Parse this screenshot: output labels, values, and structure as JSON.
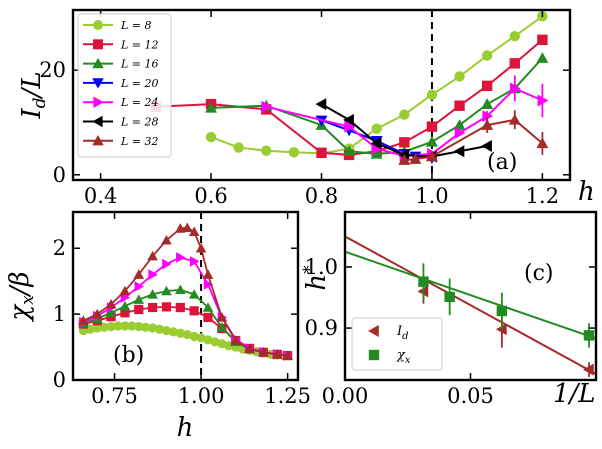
{
  "chart_data": [
    {
      "id": "a",
      "type": "line",
      "panel_label": "(a)",
      "xlabel": "h",
      "ylabel": "I_d/L",
      "xlim": [
        0.35,
        1.25
      ],
      "ylim": [
        -1.0,
        31.5
      ],
      "xticks": [
        0.4,
        0.6,
        0.8,
        1.0,
        1.2
      ],
      "xtick_labels": [
        "0.4",
        "0.6",
        "0.8",
        "1.0",
        "1.2"
      ],
      "yticks": [
        0,
        20
      ],
      "ytick_labels": [
        "0",
        "20"
      ],
      "vline": 1.0,
      "legend_position": "top-left",
      "series": [
        {
          "name": "L = 8",
          "color": "#9acd32",
          "marker": "circle",
          "x": [
            0.6,
            0.65,
            0.7,
            0.75,
            0.8,
            0.85,
            0.9,
            0.95,
            1.0,
            1.05,
            1.1,
            1.15,
            1.2
          ],
          "y": [
            7.2,
            5.2,
            4.6,
            4.3,
            4.1,
            5.0,
            8.8,
            11.5,
            15.3,
            18.8,
            22.8,
            26.5,
            30.3
          ],
          "err": [
            0,
            0,
            0,
            0,
            0,
            0,
            0,
            0,
            0,
            0,
            0,
            0,
            0
          ]
        },
        {
          "name": "L = 12",
          "color": "#dc143c",
          "marker": "square",
          "x": [
            0.5,
            0.6,
            0.7,
            0.8,
            0.85,
            0.9,
            0.95,
            1.0,
            1.05,
            1.1,
            1.15,
            1.2
          ],
          "y": [
            13.0,
            13.5,
            12.5,
            4.2,
            3.8,
            4.5,
            6.2,
            9.2,
            13.2,
            17.0,
            21.3,
            25.8
          ],
          "err": [
            0,
            0,
            0,
            0,
            0,
            0,
            0,
            0,
            0,
            0,
            0,
            0
          ]
        },
        {
          "name": "L = 16",
          "color": "#228b22",
          "marker": "triangle-up",
          "x": [
            0.6,
            0.7,
            0.8,
            0.85,
            0.9,
            0.95,
            1.0,
            1.05,
            1.1,
            1.15,
            1.2
          ],
          "y": [
            12.8,
            13.2,
            9.5,
            4.5,
            4.0,
            4.4,
            6.3,
            9.5,
            13.5,
            16.5,
            22.3
          ],
          "err": [
            0,
            0,
            0,
            0,
            0,
            0,
            0,
            0,
            0,
            0,
            0
          ]
        },
        {
          "name": "L = 20",
          "color": "#0000ff",
          "marker": "triangle-down",
          "x": [
            0.8,
            0.85,
            0.9,
            0.95,
            0.97,
            1.0
          ],
          "y": [
            10.4,
            8.5,
            6.5,
            4.0,
            3.5,
            3.2
          ],
          "err": [
            0,
            0,
            0,
            0,
            0,
            0
          ]
        },
        {
          "name": "L = 24",
          "color": "#ff00ff",
          "marker": "triangle-right",
          "x": [
            0.7,
            0.85,
            0.9,
            0.95,
            1.0,
            1.05,
            1.1,
            1.15,
            1.2
          ],
          "y": [
            13.0,
            9.2,
            5.0,
            3.6,
            4.0,
            8.0,
            11.2,
            16.5,
            14.2
          ],
          "err": [
            0,
            0,
            0,
            0,
            0,
            0,
            1.0,
            2.5,
            3.2
          ]
        },
        {
          "name": "L = 28",
          "color": "#000000",
          "marker": "triangle-left",
          "x": [
            0.8,
            0.85,
            0.9,
            0.95,
            1.0,
            1.05,
            1.1
          ],
          "y": [
            13.5,
            10.5,
            6.0,
            3.8,
            3.5,
            4.5,
            5.5
          ],
          "err": [
            0,
            0,
            0,
            0,
            0,
            0,
            0
          ]
        },
        {
          "name": "L = 32",
          "color": "#a52a2a",
          "marker": "triangle-up",
          "x": [
            0.95,
            0.97,
            1.0,
            1.1,
            1.15,
            1.2
          ],
          "y": [
            2.8,
            3.0,
            3.5,
            9.5,
            10.5,
            6.0
          ],
          "err": [
            0,
            0,
            0,
            1.5,
            1.8,
            2.2
          ]
        }
      ]
    },
    {
      "id": "b",
      "type": "line",
      "panel_label": "(b)",
      "xlabel": "h",
      "ylabel": "χ_x/β",
      "xlim": [
        0.63,
        1.28
      ],
      "ylim": [
        0.0,
        2.55
      ],
      "xticks": [
        0.75,
        1.0,
        1.25
      ],
      "xtick_labels": [
        "0.75",
        "1.00",
        "1.25"
      ],
      "yticks": [
        0,
        1,
        2
      ],
      "ytick_labels": [
        "0",
        "1",
        "2"
      ],
      "vline": 1.0,
      "series": [
        {
          "name": "L = 8",
          "color": "#9acd32",
          "marker": "circle",
          "x": [
            0.66,
            0.68,
            0.7,
            0.72,
            0.74,
            0.76,
            0.78,
            0.8,
            0.82,
            0.84,
            0.86,
            0.88,
            0.9,
            0.92,
            0.94,
            0.96,
            0.98,
            1.0,
            1.02,
            1.04,
            1.06,
            1.08,
            1.1,
            1.12,
            1.14,
            1.16,
            1.18,
            1.2,
            1.22,
            1.24
          ],
          "y": [
            0.75,
            0.77,
            0.79,
            0.8,
            0.81,
            0.82,
            0.82,
            0.82,
            0.81,
            0.8,
            0.79,
            0.77,
            0.75,
            0.73,
            0.71,
            0.69,
            0.66,
            0.64,
            0.61,
            0.58,
            0.55,
            0.52,
            0.5,
            0.47,
            0.45,
            0.43,
            0.41,
            0.39,
            0.38,
            0.37
          ]
        },
        {
          "name": "L = 12",
          "color": "#dc143c",
          "marker": "square",
          "x": [
            0.66,
            0.7,
            0.74,
            0.78,
            0.82,
            0.86,
            0.9,
            0.94,
            0.98,
            1.02,
            1.06,
            1.1,
            1.14,
            1.18,
            1.22,
            1.25
          ],
          "y": [
            0.85,
            0.9,
            0.96,
            1.02,
            1.07,
            1.1,
            1.11,
            1.1,
            1.05,
            0.95,
            0.78,
            0.6,
            0.48,
            0.42,
            0.39,
            0.37
          ]
        },
        {
          "name": "L = 16",
          "color": "#228b22",
          "marker": "triangle-up",
          "x": [
            0.66,
            0.7,
            0.74,
            0.78,
            0.82,
            0.86,
            0.9,
            0.94,
            0.98,
            1.02,
            1.06,
            1.1,
            1.14,
            1.18,
            1.22,
            1.25
          ],
          "y": [
            0.86,
            0.93,
            1.02,
            1.12,
            1.22,
            1.3,
            1.35,
            1.37,
            1.3,
            1.1,
            0.8,
            0.58,
            0.47,
            0.42,
            0.39,
            0.37
          ]
        },
        {
          "name": "L = 24",
          "color": "#ff00ff",
          "marker": "triangle-right",
          "x": [
            0.66,
            0.7,
            0.74,
            0.78,
            0.82,
            0.86,
            0.9,
            0.94,
            0.98,
            1.02,
            1.06,
            1.1,
            1.14,
            1.18,
            1.22,
            1.25
          ],
          "y": [
            0.88,
            0.97,
            1.1,
            1.25,
            1.42,
            1.6,
            1.76,
            1.86,
            1.8,
            1.45,
            0.95,
            0.62,
            0.48,
            0.42,
            0.39,
            0.37
          ]
        },
        {
          "name": "L = 32",
          "color": "#a52a2a",
          "marker": "triangle-up",
          "x": [
            0.66,
            0.7,
            0.74,
            0.78,
            0.82,
            0.86,
            0.9,
            0.94,
            0.96,
            0.98,
            1.0,
            1.02,
            1.06,
            1.1,
            1.14,
            1.18,
            1.22,
            1.25
          ],
          "y": [
            0.9,
            1.0,
            1.15,
            1.35,
            1.6,
            1.88,
            2.12,
            2.3,
            2.31,
            2.25,
            2.0,
            1.6,
            0.95,
            0.6,
            0.47,
            0.42,
            0.39,
            0.37
          ]
        }
      ]
    },
    {
      "id": "c",
      "type": "scatter",
      "panel_label": "(c)",
      "xlabel": "1/L",
      "ylabel": "h*",
      "xlim": [
        0.0,
        0.1
      ],
      "ylim": [
        0.815,
        1.09
      ],
      "xticks": [
        0.0,
        0.05
      ],
      "xtick_labels": [
        "0.00",
        "0.05"
      ],
      "yticks": [
        0.9,
        1.0
      ],
      "ytick_labels": [
        "0.9",
        "1.0"
      ],
      "legend_position": "bottom-left",
      "series": [
        {
          "name": "I_d",
          "label": "I",
          "label_sub": "d",
          "color": "#a52a2a",
          "marker": "triangle-left",
          "x": [
            0.03125,
            0.0625,
            0.0972
          ],
          "y": [
            0.96,
            0.898,
            0.832
          ],
          "err": [
            0.02,
            0.03,
            0.012
          ],
          "fit": {
            "x0": 0.0,
            "y0": 1.05,
            "x1": 0.1,
            "y1": 0.825
          }
        },
        {
          "name": "χ_x",
          "label": "χ",
          "label_sub": "x",
          "color": "#228b22",
          "marker": "square",
          "x": [
            0.03125,
            0.0417,
            0.0625,
            0.0972
          ],
          "y": [
            0.976,
            0.951,
            0.928,
            0.888
          ],
          "err": [
            0.03,
            0.03,
            0.03,
            0.02
          ],
          "fit": {
            "x0": 0.0,
            "y0": 1.025,
            "x1": 0.1,
            "y1": 0.883
          }
        }
      ]
    }
  ]
}
